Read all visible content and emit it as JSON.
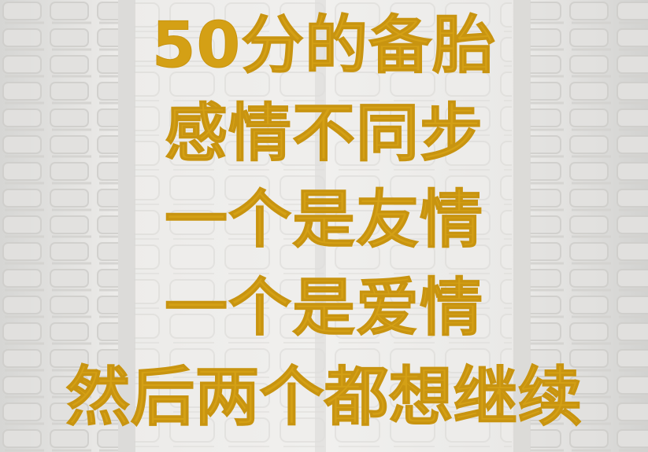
{
  "background": {
    "subject": "tire-tread",
    "base_color": "#e6e6e4"
  },
  "caption": {
    "color": "#d4a015",
    "lines": [
      "50分的备胎",
      "感情不同步",
      "一个是友情",
      "一个是爱情",
      "然后两个都想继续"
    ]
  }
}
